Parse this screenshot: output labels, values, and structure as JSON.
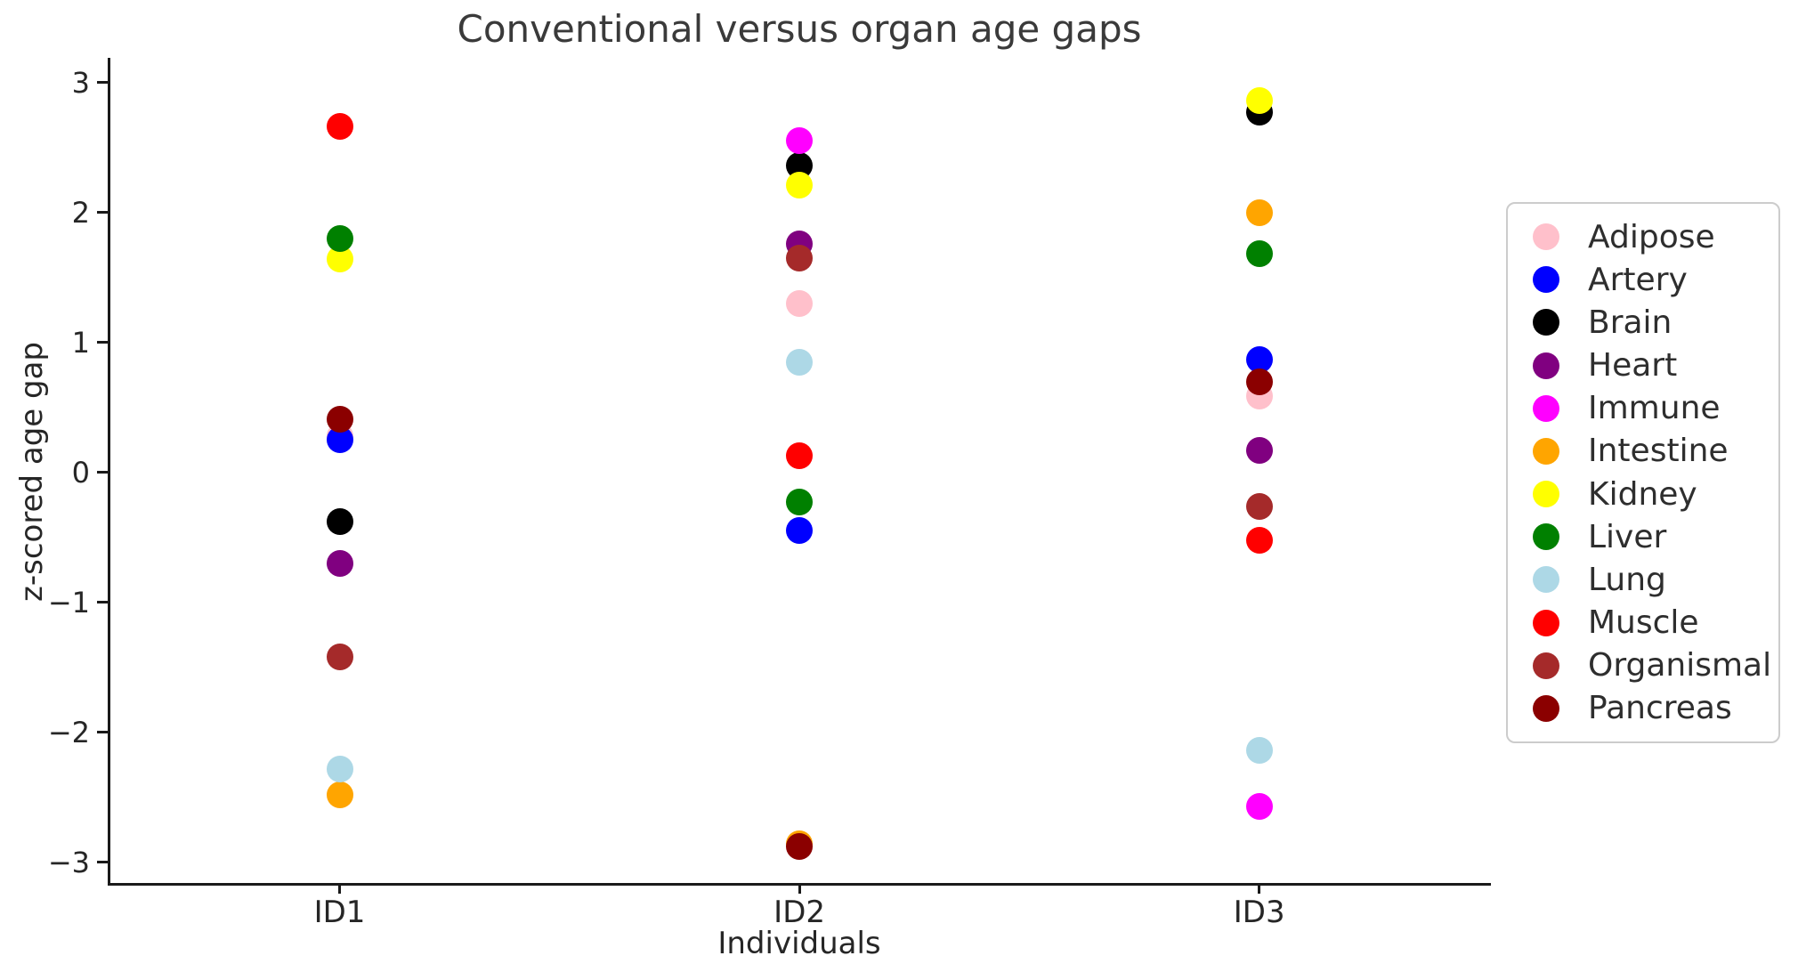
{
  "title": "Conventional versus organ age gaps",
  "chart_data": {
    "type": "scatter",
    "title": "Conventional versus organ age gaps",
    "xlabel": "Individuals",
    "ylabel": "z-scored age gap",
    "categories": [
      "ID1",
      "ID2",
      "ID3"
    ],
    "ylim": [
      -3.17,
      3.19
    ],
    "yticks": [
      3,
      2,
      1,
      0,
      -1,
      -2,
      -3
    ],
    "ytick_labels": [
      "3",
      "2",
      "1",
      "0",
      "−1",
      "−2",
      "−3"
    ],
    "grid": false,
    "legend_position": "center right",
    "marker_size_px": 30,
    "series": [
      {
        "name": "Adipose",
        "color": "#FFC0CB",
        "values": [
          0.28,
          1.3,
          0.59
        ]
      },
      {
        "name": "Artery",
        "color": "#0000FF",
        "values": [
          0.25,
          -0.45,
          0.87
        ]
      },
      {
        "name": "Brain",
        "color": "#000000",
        "values": [
          -0.38,
          2.36,
          2.77
        ]
      },
      {
        "name": "Heart",
        "color": "#800080",
        "values": [
          -0.7,
          1.76,
          0.17
        ]
      },
      {
        "name": "Immune",
        "color": "#FF00FF",
        "values": [
          null,
          2.55,
          -2.57
        ]
      },
      {
        "name": "Intestine",
        "color": "#FFA500",
        "values": [
          -2.48,
          -2.86,
          2.0
        ]
      },
      {
        "name": "Kidney",
        "color": "#FFFF00",
        "values": [
          1.64,
          2.21,
          2.86
        ]
      },
      {
        "name": "Liver",
        "color": "#008000",
        "values": [
          1.8,
          -0.23,
          1.68
        ]
      },
      {
        "name": "Lung",
        "color": "#ADD8E6",
        "values": [
          -2.28,
          0.85,
          -2.14
        ]
      },
      {
        "name": "Muscle",
        "color": "#FF0000",
        "values": [
          2.66,
          0.13,
          -0.52
        ]
      },
      {
        "name": "Organismal",
        "color": "#A52A2A",
        "values": [
          -1.42,
          1.65,
          -0.26
        ]
      },
      {
        "name": "Pancreas",
        "color": "#8B0000",
        "values": [
          0.41,
          -2.88,
          0.7
        ]
      }
    ]
  }
}
